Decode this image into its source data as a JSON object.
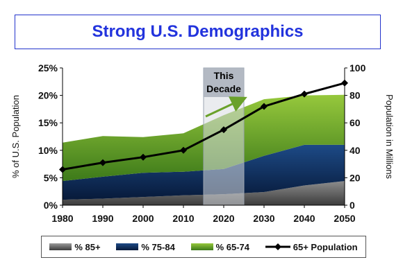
{
  "chart_data": {
    "type": "area",
    "title": "Strong U.S. Demographics",
    "x": [
      1980,
      1990,
      2000,
      2010,
      2020,
      2030,
      2040,
      2050
    ],
    "ylabel_left": "% of U.S. Population",
    "ylabel_right": "Population in Millions",
    "ylim_left": [
      0,
      25
    ],
    "ylim_right": [
      0,
      100
    ],
    "yticks_left": [
      "0%",
      "5%",
      "10%",
      "15%",
      "20%",
      "25%"
    ],
    "yticks_right": [
      "0",
      "20",
      "40",
      "60",
      "80",
      "100"
    ],
    "stacked_series": [
      {
        "name": "% 85+",
        "color": "#7a7a7a",
        "values": [
          1.0,
          1.2,
          1.5,
          1.8,
          2.0,
          2.4,
          3.6,
          4.4
        ]
      },
      {
        "name": "% 75-84",
        "color": "#0c2a57",
        "values": [
          3.4,
          4.0,
          4.4,
          4.3,
          4.6,
          6.6,
          7.4,
          6.6
        ]
      },
      {
        "name": "% 65-74",
        "color": "#6aa12a",
        "values": [
          7.0,
          7.4,
          6.5,
          7.0,
          9.8,
          10.3,
          9.0,
          9.1
        ]
      }
    ],
    "line_series": {
      "name": "65+ Population",
      "color": "#000000",
      "axis": "right",
      "values": [
        26,
        31,
        35,
        40,
        55,
        72,
        81,
        89
      ]
    },
    "annotation": {
      "label": [
        "This",
        "Decade"
      ],
      "from": 2015,
      "to": 2025
    },
    "legend_position": "bottom",
    "grid": false
  }
}
